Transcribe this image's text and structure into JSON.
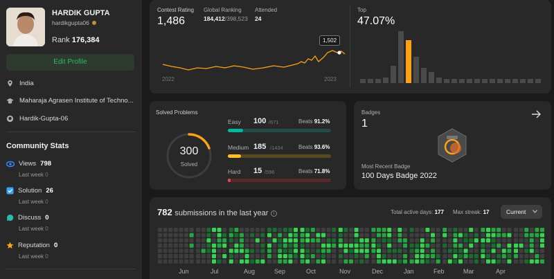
{
  "profile": {
    "name": "HARDIK GUPTA",
    "username": "hardikgupta06",
    "rank_label": "Rank",
    "rank_value": "176,384",
    "edit_label": "Edit Profile",
    "country": "India",
    "school": "Maharaja Agrasen Institute of Techno...",
    "github": "Hardik-Gupta-06"
  },
  "community": {
    "title": "Community Stats",
    "items": [
      {
        "label": "Views",
        "value": "798",
        "sub": "Last week",
        "delta": "0",
        "color": "#3a87ff"
      },
      {
        "label": "Solution",
        "value": "26",
        "sub": "Last week",
        "delta": "0",
        "color": "#36a3f7"
      },
      {
        "label": "Discuss",
        "value": "0",
        "sub": "Last week",
        "delta": "0",
        "color": "#2cbbaa"
      },
      {
        "label": "Reputation",
        "value": "0",
        "sub": "Last week",
        "delta": "0",
        "color": "#ffa116"
      }
    ]
  },
  "contest": {
    "rating_label": "Contest Rating",
    "rating": "1,486",
    "global_label": "Global Ranking",
    "global_rank": "184,412",
    "global_total": "/398,523",
    "attended_label": "Attended",
    "attended": "24",
    "tooltip": "1,502",
    "x_start": "2022",
    "x_end": "2023",
    "top_label": "Top",
    "top_value": "47.07%"
  },
  "solved": {
    "title": "Solved Problems",
    "total": "300",
    "total_label": "Solved",
    "rows": [
      {
        "label": "Easy",
        "value": "100",
        "total": "/671",
        "beats_label": "Beats",
        "beats": "91.2%",
        "fraction": 0.149,
        "color": "#00b8a3",
        "track": "#234c47"
      },
      {
        "label": "Medium",
        "value": "185",
        "total": "/1434",
        "beats_label": "Beats",
        "beats": "93.6%",
        "fraction": 0.129,
        "color": "#ffc01e",
        "track": "#5a4a21"
      },
      {
        "label": "Hard",
        "value": "15",
        "total": "/596",
        "beats_label": "Beats",
        "beats": "71.8%",
        "fraction": 0.025,
        "color": "#ef4743",
        "track": "#5a2a29"
      }
    ]
  },
  "badges": {
    "label": "Badges",
    "count": "1",
    "recent_label": "Most Recent Badge",
    "recent_name": "100 Days Badge 2022"
  },
  "submissions": {
    "count": "782",
    "text": "submissions in the last year",
    "active_label": "Total active days:",
    "active": "177",
    "streak_label": "Max streak:",
    "streak": "17",
    "select": "Current",
    "months": [
      "Jun",
      "Jul",
      "Aug",
      "Sep",
      "Oct",
      "Nov",
      "Dec",
      "Jan",
      "Feb",
      "Mar",
      "Apr"
    ]
  }
}
